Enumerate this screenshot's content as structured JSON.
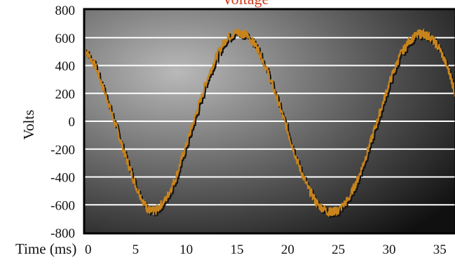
{
  "chart_data": {
    "type": "line",
    "title": "Voltage",
    "ylabel": "Volts",
    "xlabel": "Time (ms)",
    "xlim": [
      0,
      36.5
    ],
    "ylim": [
      -800,
      800
    ],
    "x_ticks": [
      0,
      5,
      10,
      15,
      20,
      25,
      30,
      35
    ],
    "y_ticks": [
      800,
      600,
      400,
      200,
      0,
      -200,
      -400,
      -600,
      -800
    ],
    "grid": "horizontal",
    "colors": {
      "series": "#c8841c",
      "shadow": "#111111",
      "grid": "#ffffff",
      "frame": "#000000",
      "title": "#d23a1a",
      "plot_bg_light": "#b9b9b9",
      "plot_bg_dark": "#101010"
    },
    "series": [
      {
        "x": [
          0,
          1,
          2,
          3,
          4,
          5,
          6,
          6.5,
          7,
          8,
          9,
          10,
          11,
          12,
          13,
          14,
          15,
          15.5,
          16,
          17,
          18,
          19,
          20,
          21,
          22,
          23,
          24,
          24.5,
          25,
          26,
          27,
          28,
          29,
          30,
          31,
          32,
          33,
          33.5,
          34,
          35,
          36,
          36.5
        ],
        "y": [
          520,
          400,
          200,
          -20,
          -250,
          -460,
          -610,
          -650,
          -640,
          -560,
          -400,
          -170,
          60,
          290,
          470,
          600,
          640,
          630,
          620,
          530,
          360,
          150,
          -70,
          -300,
          -480,
          -600,
          -650,
          -650,
          -640,
          -560,
          -400,
          -190,
          40,
          270,
          460,
          580,
          630,
          620,
          610,
          520,
          340,
          200
        ]
      }
    ]
  }
}
